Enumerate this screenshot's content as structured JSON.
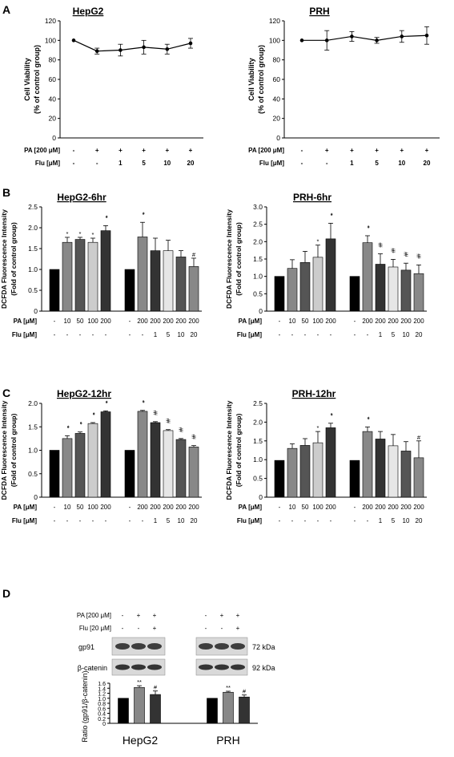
{
  "panel_letters": [
    "A",
    "B",
    "C",
    "D"
  ],
  "row_labels": {
    "pa_200": "PA [200 μM]",
    "flu": "Flu [μM]",
    "pa": "PA [μM]",
    "pa_200_d": "PA [200 μM]",
    "flu_20_d": "Flu [20 μM]"
  },
  "colors": {
    "black": "#000000",
    "dark": "#333333",
    "mid_dark": "#555555",
    "mid": "#888888",
    "light": "#cccccc",
    "very_light": "#e6e6e6"
  },
  "blot": {
    "gp91_label": "gp91",
    "bcat_label": "β-catenin",
    "gp91_kda": "72 kDa",
    "bcat_kda": "92 kDa"
  },
  "chart_data": [
    {
      "id": "A-HepG2",
      "type": "line",
      "title": "HepG2",
      "ylabel": "Cell Viability",
      "ylabel2": "(% of control group)",
      "ylim": [
        0,
        120
      ],
      "yticks": [
        0,
        20,
        40,
        60,
        80,
        100,
        120
      ],
      "values": [
        100,
        89,
        90,
        93,
        91,
        97
      ],
      "errors": [
        0,
        3,
        6,
        7,
        5,
        5
      ],
      "pa_row": [
        "-",
        "+",
        "+",
        "+",
        "+",
        "+"
      ],
      "flu_row": [
        "-",
        "-",
        "1",
        "5",
        "10",
        "20"
      ],
      "grid": false
    },
    {
      "id": "A-PRH",
      "type": "line",
      "title": "PRH",
      "ylabel": "Cell Viability",
      "ylabel2": "(% of control group)",
      "ylim": [
        0,
        120
      ],
      "yticks": [
        0,
        20,
        40,
        60,
        80,
        100,
        120
      ],
      "values": [
        100,
        100,
        104,
        100,
        104,
        105
      ],
      "errors": [
        0,
        10,
        5,
        3,
        6,
        9
      ],
      "pa_row": [
        "-",
        "+",
        "+",
        "+",
        "+",
        "+"
      ],
      "flu_row": [
        "-",
        "-",
        "1",
        "5",
        "10",
        "20"
      ],
      "grid": false
    },
    {
      "id": "B-HepG2",
      "type": "bar",
      "title": "HepG2-6hr",
      "ylabel": "DCFDA Fluorescence Intensity",
      "ylabel2": "(Fold of control group)",
      "ylim": [
        0,
        2.5
      ],
      "yticks": [
        "0",
        "0.5",
        "1.0",
        "1.5",
        "2.0",
        "2.5"
      ],
      "values": [
        1.0,
        1.65,
        1.72,
        1.65,
        1.93,
        1.0,
        1.78,
        1.45,
        1.45,
        1.3,
        1.07
      ],
      "errors": [
        0,
        0.12,
        0.05,
        0.1,
        0.12,
        0,
        0.35,
        0.3,
        0.25,
        0.15,
        0.2
      ],
      "marks": [
        "",
        "*",
        "*",
        "*",
        "**",
        "",
        "**",
        "",
        "",
        "",
        "#"
      ],
      "pa_row": [
        "-",
        "10",
        "50",
        "100",
        "200",
        "-",
        "200",
        "200",
        "200",
        "200",
        "200"
      ],
      "flu_row": [
        "-",
        "-",
        "-",
        "-",
        "-",
        "-",
        "-",
        "1",
        "5",
        "10",
        "20"
      ],
      "grid": false
    },
    {
      "id": "B-PRH",
      "type": "bar",
      "title": "PRH-6hr",
      "ylabel": "DCFDA Fluorescence Intensity",
      "ylabel2": "(Fold of control group)",
      "ylim": [
        0,
        3.0
      ],
      "yticks": [
        "0",
        "0.5",
        "1.0",
        "1.5",
        "2.0",
        "2.5",
        "3.0"
      ],
      "values": [
        1.0,
        1.23,
        1.4,
        1.55,
        2.08,
        1.0,
        1.97,
        1.35,
        1.27,
        1.18,
        1.08
      ],
      "errors": [
        0,
        0.25,
        0.32,
        0.35,
        0.45,
        0,
        0.2,
        0.3,
        0.22,
        0.2,
        0.25
      ],
      "marks": [
        "",
        "",
        "",
        "*",
        "**",
        "",
        "**",
        "##",
        "##",
        "##",
        "##"
      ],
      "pa_row": [
        "-",
        "10",
        "50",
        "100",
        "200",
        "-",
        "200",
        "200",
        "200",
        "200",
        "200"
      ],
      "flu_row": [
        "-",
        "-",
        "-",
        "-",
        "-",
        "-",
        "-",
        "1",
        "5",
        "10",
        "20"
      ],
      "grid": false
    },
    {
      "id": "C-HepG2",
      "type": "bar",
      "title": "HepG2-12hr",
      "ylabel": "DCFDA Fluorescence Intensity",
      "ylabel2": "(Fold of control group)",
      "ylim": [
        0,
        2.0
      ],
      "yticks": [
        "0",
        "0.5",
        "1.0",
        "1.5",
        "2.0"
      ],
      "values": [
        1.0,
        1.25,
        1.36,
        1.57,
        1.82,
        1.0,
        1.83,
        1.59,
        1.42,
        1.23,
        1.07
      ],
      "errors": [
        0,
        0.06,
        0.03,
        0.02,
        0.02,
        0,
        0.02,
        0.02,
        0.02,
        0.02,
        0.03
      ],
      "marks": [
        "",
        "**",
        "**",
        "**",
        "**",
        "",
        "**",
        "##",
        "##",
        "##",
        "##"
      ],
      "pa_row": [
        "-",
        "10",
        "50",
        "100",
        "200",
        "-",
        "200",
        "200",
        "200",
        "200",
        "200"
      ],
      "flu_row": [
        "-",
        "-",
        "-",
        "-",
        "-",
        "-",
        "-",
        "1",
        "5",
        "10",
        "20"
      ],
      "grid": false
    },
    {
      "id": "C-PRH",
      "type": "bar",
      "title": "PRH-12hr",
      "ylabel": "DCFDA Fluorescence Intensity",
      "ylabel2": "(Fold of control group)",
      "ylim": [
        0,
        2.5
      ],
      "yticks": [
        "0",
        "0.5",
        "1.0",
        "1.5",
        "2.0",
        "2.5"
      ],
      "values": [
        0.98,
        1.3,
        1.38,
        1.45,
        1.85,
        0.98,
        1.75,
        1.55,
        1.37,
        1.23,
        1.05
      ],
      "errors": [
        0,
        0.12,
        0.18,
        0.3,
        0.12,
        0,
        0.12,
        0.2,
        0.3,
        0.25,
        0.45
      ],
      "marks": [
        "",
        "",
        "",
        "*",
        "**",
        "",
        "**",
        "",
        "",
        "",
        "#"
      ],
      "pa_row": [
        "-",
        "10",
        "50",
        "100",
        "200",
        "-",
        "200",
        "200",
        "200",
        "200",
        "200"
      ],
      "flu_row": [
        "-",
        "-",
        "-",
        "-",
        "-",
        "-",
        "-",
        "1",
        "5",
        "10",
        "20"
      ],
      "grid": false
    },
    {
      "id": "D",
      "type": "bar",
      "title": "",
      "ylabel": "Ratio (gp91/β-catenin)",
      "ylim": [
        0,
        1.6
      ],
      "yticks": [
        "0",
        "0.2",
        "0.4",
        "0.6",
        "0.8",
        "1.0",
        "1.2",
        "1.4",
        "1.6"
      ],
      "groups": [
        "HepG2",
        "PRH"
      ],
      "values": [
        1.0,
        1.43,
        1.15,
        1.0,
        1.24,
        1.05
      ],
      "errors": [
        0,
        0.07,
        0.14,
        0,
        0.04,
        0.08
      ],
      "marks": [
        "",
        "**",
        "#",
        "",
        "**",
        "#"
      ],
      "pa_row": [
        "-",
        "+",
        "+",
        "-",
        "+",
        "+"
      ],
      "flu_row": [
        "-",
        "-",
        "+",
        "-",
        "-",
        "+"
      ],
      "grid": false
    }
  ]
}
